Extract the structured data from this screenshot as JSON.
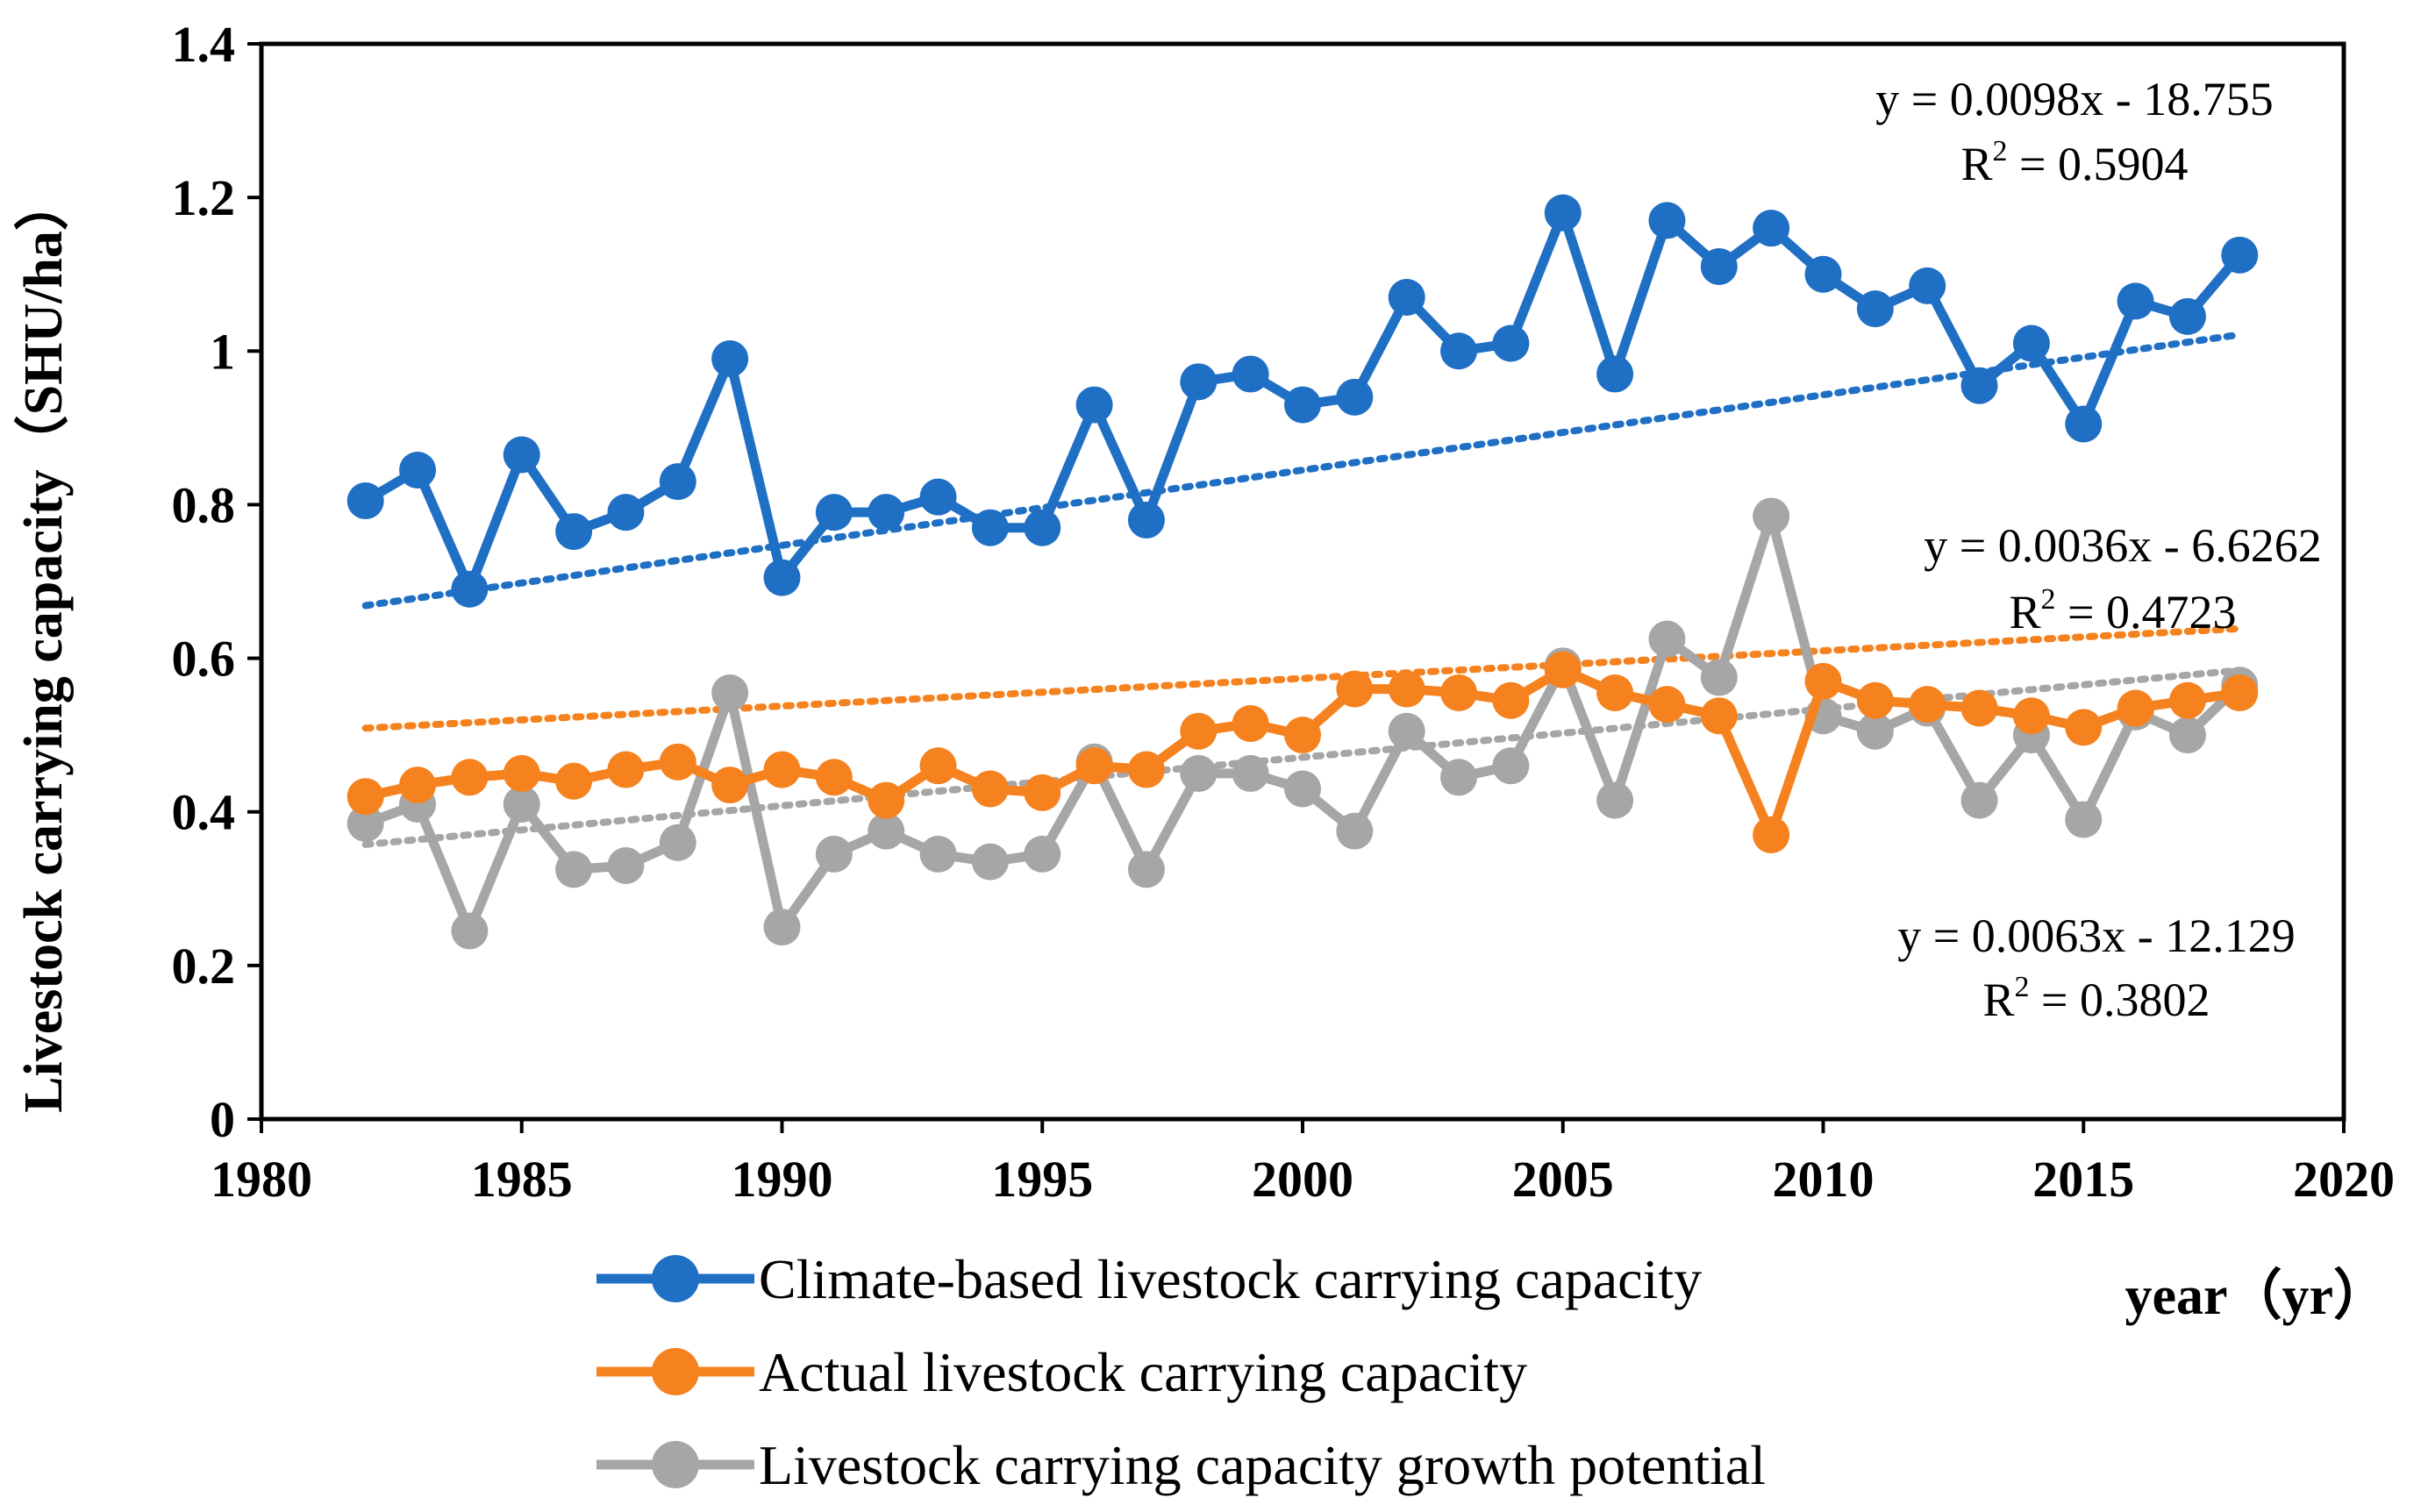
{
  "chart_data": {
    "type": "line",
    "xlabel": "year（yr）",
    "ylabel": "Livestock carrying capacity（SHU/ha）",
    "xlim": [
      1980,
      2020
    ],
    "ylim": [
      0,
      1.4
    ],
    "xticks": [
      "1980",
      "1985",
      "1990",
      "1995",
      "2000",
      "2005",
      "2010",
      "2015",
      "2020"
    ],
    "yticks": [
      "0",
      "0.2",
      "0.4",
      "0.6",
      "0.8",
      "1",
      "1.2",
      "1.4"
    ],
    "x": [
      1982,
      1983,
      1984,
      1985,
      1986,
      1987,
      1988,
      1989,
      1990,
      1991,
      1992,
      1993,
      1994,
      1995,
      1996,
      1997,
      1998,
      1999,
      2000,
      2001,
      2002,
      2003,
      2004,
      2005,
      2006,
      2007,
      2008,
      2009,
      2010,
      2011,
      2012,
      2013,
      2014,
      2015,
      2016,
      2017,
      2018
    ],
    "series": [
      {
        "name": "Climate-based livestock carrying capacity",
        "color": "#1f6fc5",
        "values": [
          0.805,
          0.845,
          0.69,
          0.865,
          0.765,
          0.79,
          0.83,
          0.99,
          0.705,
          0.79,
          0.79,
          0.81,
          0.77,
          0.77,
          0.93,
          0.78,
          0.96,
          0.97,
          0.93,
          0.94,
          1.07,
          1.0,
          1.01,
          1.18,
          0.97,
          1.17,
          1.11,
          1.16,
          1.1,
          1.055,
          1.085,
          0.955,
          1.01,
          0.905,
          1.065,
          1.045,
          1.125
        ],
        "trend": {
          "slope": 0.0098,
          "intercept": -18.755
        },
        "equation": "y = 0.0098x - 18.755",
        "r2_prefix": "R",
        "r2_value": " = 0.5904"
      },
      {
        "name": "Actual livestock carrying capacity",
        "color": "#f5821f",
        "values": [
          0.42,
          0.435,
          0.445,
          0.45,
          0.44,
          0.455,
          0.465,
          0.435,
          0.455,
          0.445,
          0.415,
          0.46,
          0.43,
          0.425,
          0.46,
          0.455,
          0.505,
          0.515,
          0.5,
          0.56,
          0.56,
          0.555,
          0.545,
          0.585,
          0.555,
          0.54,
          0.525,
          0.37,
          0.57,
          0.545,
          0.54,
          0.535,
          0.525,
          0.51,
          0.535,
          0.545,
          0.555
        ],
        "trend": {
          "slope": 0.0036,
          "intercept": -6.6262
        },
        "equation": "y = 0.0036x - 6.6262",
        "r2_prefix": "R",
        "r2_value": " = 0.4723"
      },
      {
        "name": "Livestock carrying capacity growth potential",
        "color": "#a6a6a6",
        "values": [
          0.385,
          0.41,
          0.245,
          0.41,
          0.325,
          0.33,
          0.36,
          0.555,
          0.25,
          0.345,
          0.375,
          0.345,
          0.335,
          0.345,
          0.465,
          0.325,
          0.45,
          0.45,
          0.43,
          0.375,
          0.505,
          0.445,
          0.46,
          0.59,
          0.415,
          0.625,
          0.575,
          0.785,
          0.525,
          0.505,
          0.535,
          0.415,
          0.5,
          0.39,
          0.53,
          0.5,
          0.565
        ],
        "trend": {
          "slope": 0.0063,
          "intercept": -12.129
        },
        "equation": "y = 0.0063x - 12.129",
        "r2_prefix": "R",
        "r2_value": " = 0.3802"
      }
    ],
    "r2_superscript": "2"
  }
}
